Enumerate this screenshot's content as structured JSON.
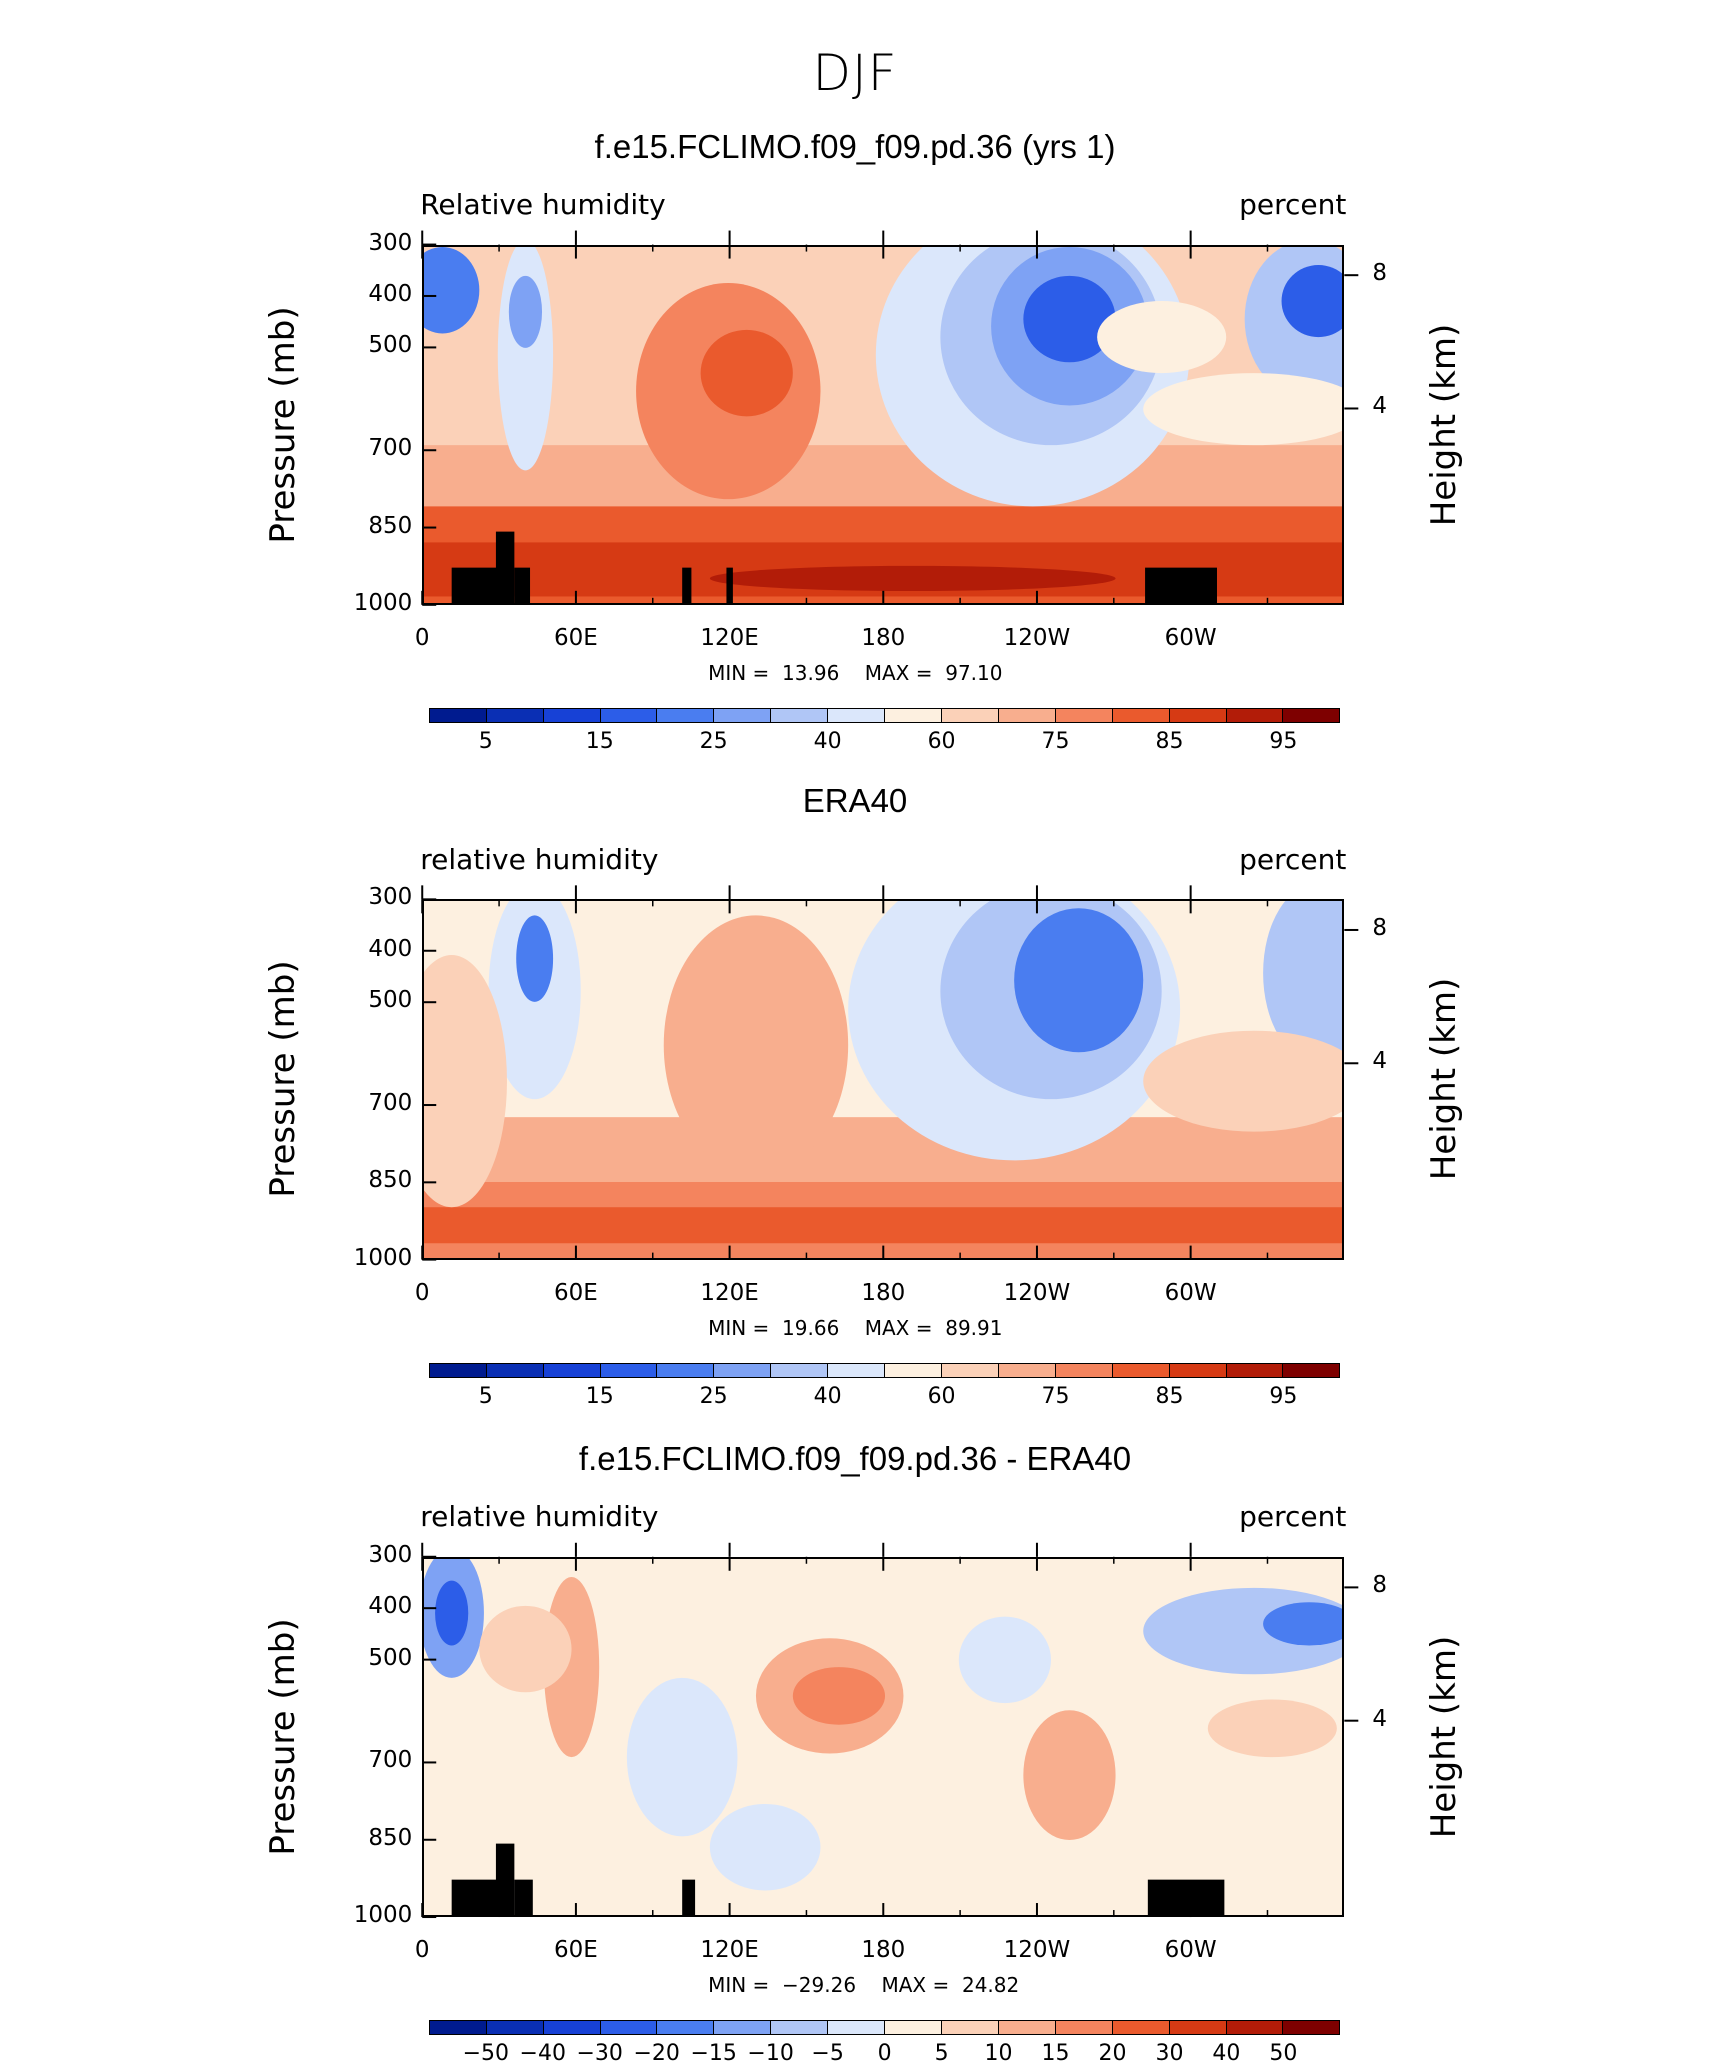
{
  "main_title": "DJF",
  "chart_data": [
    {
      "type": "heatmap",
      "title": "f.e15.FCLIMO.f09_f09.pd.36 (yrs 1)",
      "left_label": "Relative humidity",
      "right_label": "percent",
      "ylabel": "Pressure (mb)",
      "ylabel_right": "Height (km)",
      "x_ticks": [
        "0",
        "60E",
        "120E",
        "180",
        "120W",
        "60W"
      ],
      "y_ticks": [
        "300",
        "400",
        "500",
        "700",
        "850",
        "1000"
      ],
      "y_right_ticks": [
        "8",
        "4"
      ],
      "min_label": "MIN =",
      "min_value": "13.96",
      "max_label": "MAX =",
      "max_value": "97.10",
      "colorbar_labels": [
        "5",
        "15",
        "25",
        "40",
        "60",
        "75",
        "85",
        "95"
      ],
      "colorbar_colors": [
        "#001b8f",
        "#0a2fb4",
        "#1741d6",
        "#2c5de8",
        "#4a7df0",
        "#7ea2f4",
        "#b0c6f6",
        "#dbe7fb",
        "#fdf0e0",
        "#fbd1b8",
        "#f8ae8e",
        "#f4845e",
        "#ea5a2d",
        "#d63a14",
        "#b21c08",
        "#7e0000"
      ]
    },
    {
      "type": "heatmap",
      "title": "ERA40",
      "left_label": "relative humidity",
      "right_label": "percent",
      "ylabel": "Pressure (mb)",
      "ylabel_right": "Height (km)",
      "x_ticks": [
        "0",
        "60E",
        "120E",
        "180",
        "120W",
        "60W"
      ],
      "y_ticks": [
        "300",
        "400",
        "500",
        "700",
        "850",
        "1000"
      ],
      "y_right_ticks": [
        "8",
        "4"
      ],
      "min_label": "MIN =",
      "min_value": "19.66",
      "max_label": "MAX =",
      "max_value": "89.91",
      "colorbar_labels": [
        "5",
        "15",
        "25",
        "40",
        "60",
        "75",
        "85",
        "95"
      ],
      "colorbar_colors": [
        "#001b8f",
        "#0a2fb4",
        "#1741d6",
        "#2c5de8",
        "#4a7df0",
        "#7ea2f4",
        "#b0c6f6",
        "#dbe7fb",
        "#fdf0e0",
        "#fbd1b8",
        "#f8ae8e",
        "#f4845e",
        "#ea5a2d",
        "#d63a14",
        "#b21c08",
        "#7e0000"
      ]
    },
    {
      "type": "heatmap",
      "title": "f.e15.FCLIMO.f09_f09.pd.36 - ERA40",
      "left_label": "relative humidity",
      "right_label": "percent",
      "ylabel": "Pressure (mb)",
      "ylabel_right": "Height (km)",
      "x_ticks": [
        "0",
        "60E",
        "120E",
        "180",
        "120W",
        "60W"
      ],
      "y_ticks": [
        "300",
        "400",
        "500",
        "700",
        "850",
        "1000"
      ],
      "y_right_ticks": [
        "8",
        "4"
      ],
      "min_label": "MIN =",
      "min_value": "−29.26",
      "max_label": "MAX =",
      "max_value": "24.82",
      "colorbar_labels": [
        "−50",
        "−40",
        "−30",
        "−20",
        "−15",
        "−10",
        "−5",
        "0",
        "5",
        "10",
        "15",
        "20",
        "30",
        "40",
        "50"
      ],
      "colorbar_colors": [
        "#001b8f",
        "#0a2fb4",
        "#1741d6",
        "#2c5de8",
        "#4a7df0",
        "#7ea2f4",
        "#b0c6f6",
        "#dbe7fb",
        "#fdf0e0",
        "#fbd1b8",
        "#f8ae8e",
        "#f4845e",
        "#ea5a2d",
        "#d63a14",
        "#b21c08",
        "#7e0000"
      ]
    }
  ]
}
